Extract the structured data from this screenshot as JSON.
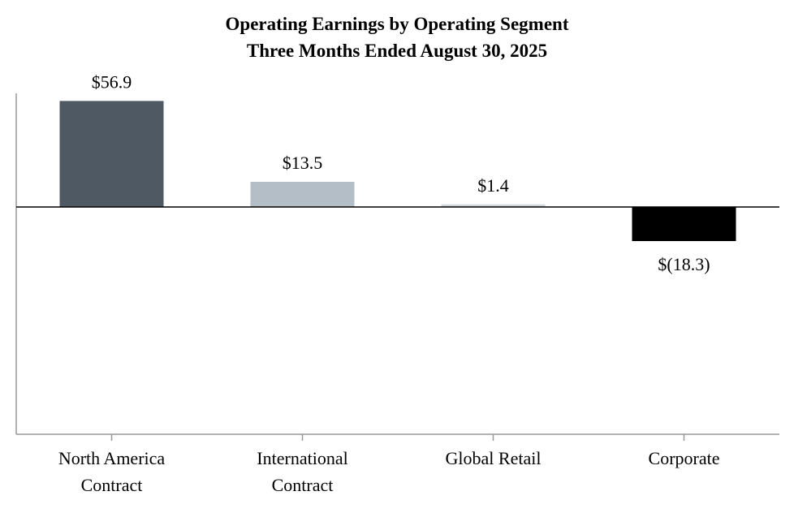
{
  "chart_data": {
    "type": "bar",
    "title": "Operating Earnings by Operating Segment",
    "subtitle": "Three Months Ended August 30, 2025",
    "categories": [
      "North America Contract",
      "International Contract",
      "Global Retail",
      "Corporate"
    ],
    "values": [
      56.9,
      13.5,
      1.4,
      -18.3
    ],
    "value_labels": [
      "$56.9",
      "$13.5",
      "$1.4",
      "$(18.3)"
    ],
    "colors": [
      "#4f5963",
      "#b3bec7",
      "#cfd6dc",
      "#000000"
    ],
    "ylim": [
      -122,
      61
    ]
  }
}
